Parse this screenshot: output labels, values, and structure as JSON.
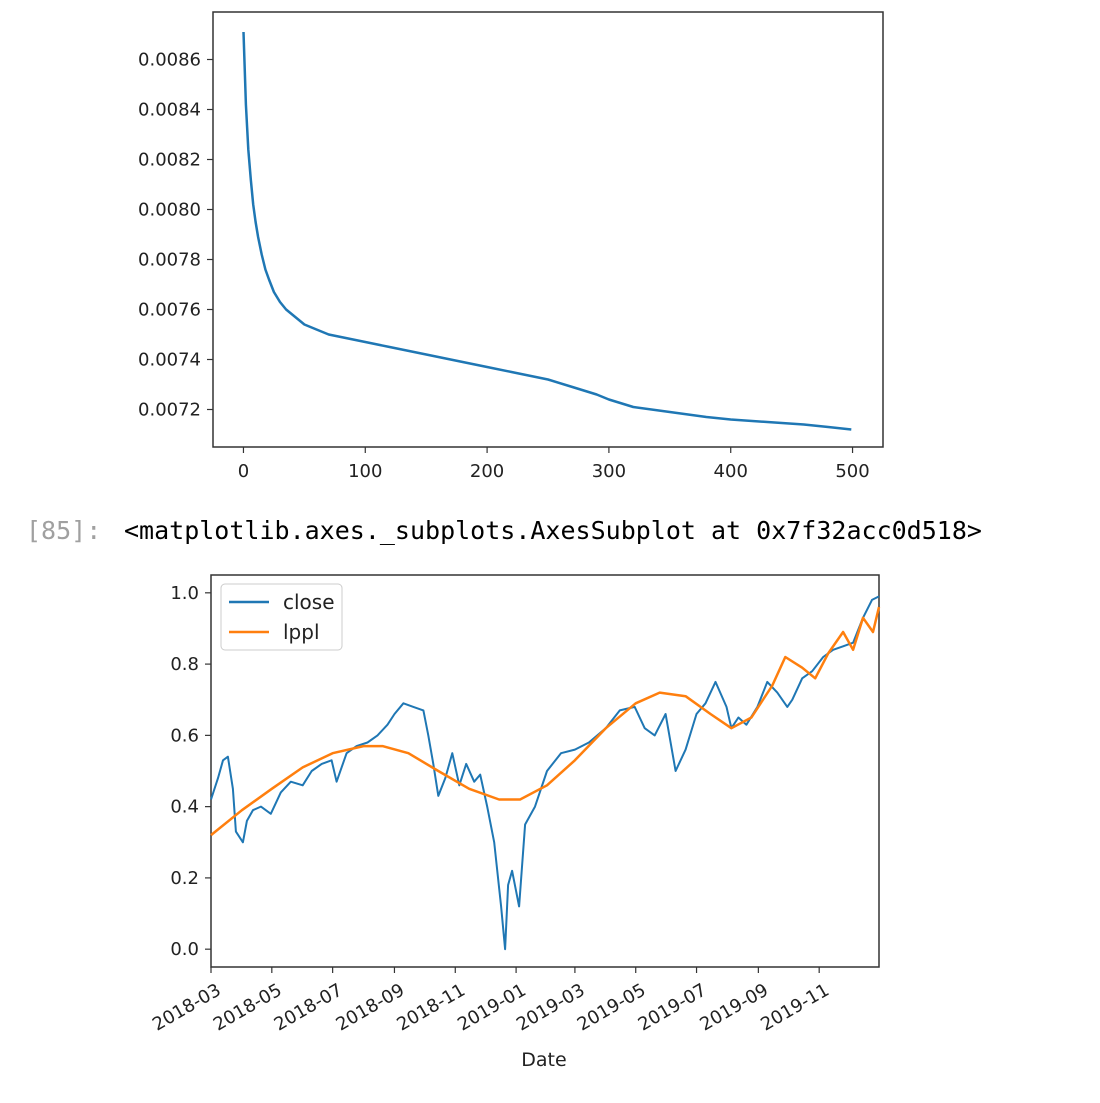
{
  "output_cell": {
    "prompt": "[85]:",
    "text": "<matplotlib.axes._subplots.AxesSubplot at 0x7f32acc0d518>"
  },
  "colors": {
    "close": "#1f77b4",
    "lppl": "#ff7f0e",
    "frame": "#333333"
  },
  "chart_data": [
    {
      "type": "line",
      "title": "",
      "xlabel": "",
      "ylabel": "",
      "xlim": [
        -25,
        525
      ],
      "ylim": [
        0.00705,
        0.00879
      ],
      "xticks": [
        0,
        100,
        200,
        300,
        400,
        500
      ],
      "yticks": [
        0.0072,
        0.0074,
        0.0076,
        0.0078,
        0.008,
        0.0082,
        0.0084,
        0.0086
      ],
      "ytick_labels": [
        "0.0072",
        "0.0074",
        "0.0076",
        "0.0078",
        "0.0080",
        "0.0082",
        "0.0084",
        "0.0086"
      ],
      "grid": false,
      "series": [
        {
          "x": [
            0,
            2,
            4,
            6,
            8,
            10,
            12,
            15,
            18,
            21,
            25,
            30,
            35,
            40,
            45,
            50,
            60,
            70,
            80,
            100,
            120,
            150,
            180,
            200,
            220,
            250,
            270,
            290,
            300,
            320,
            350,
            380,
            400,
            430,
            460,
            480,
            499
          ],
          "y": [
            0.00871,
            0.00842,
            0.00824,
            0.00812,
            0.00802,
            0.00795,
            0.00789,
            0.00782,
            0.00776,
            0.00772,
            0.00767,
            0.00763,
            0.0076,
            0.00758,
            0.00756,
            0.00754,
            0.00752,
            0.0075,
            0.00749,
            0.00747,
            0.00745,
            0.00742,
            0.00739,
            0.00737,
            0.00735,
            0.00732,
            0.00729,
            0.00726,
            0.00724,
            0.00721,
            0.00719,
            0.00717,
            0.00716,
            0.00715,
            0.00714,
            0.00713,
            0.00712
          ]
        }
      ]
    },
    {
      "type": "line",
      "title": "",
      "xlabel": "Date",
      "ylabel": "",
      "xlim": [
        "2018-03-01",
        "2019-12-31"
      ],
      "ylim": [
        -0.05,
        1.05
      ],
      "xtick_labels": [
        "2018-03",
        "2018-05",
        "2018-07",
        "2018-09",
        "2018-11",
        "2019-01",
        "2019-03",
        "2019-05",
        "2019-07",
        "2019-09",
        "2019-11"
      ],
      "yticks": [
        0.0,
        0.2,
        0.4,
        0.6,
        0.8,
        1.0
      ],
      "ytick_labels": [
        "0.0",
        "0.2",
        "0.4",
        "0.6",
        "0.8",
        "1.0"
      ],
      "legend": {
        "position": "top-left",
        "entries": [
          "close",
          "lppl"
        ]
      },
      "grid": false,
      "series": [
        {
          "name": "close",
          "x": [
            "2018-03-01",
            "2018-03-08",
            "2018-03-13",
            "2018-03-18",
            "2018-03-23",
            "2018-03-26",
            "2018-04-02",
            "2018-04-06",
            "2018-04-12",
            "2018-04-20",
            "2018-04-30",
            "2018-05-10",
            "2018-05-20",
            "2018-06-01",
            "2018-06-10",
            "2018-06-20",
            "2018-06-30",
            "2018-07-05",
            "2018-07-15",
            "2018-07-25",
            "2018-08-05",
            "2018-08-15",
            "2018-08-25",
            "2018-09-01",
            "2018-09-10",
            "2018-09-20",
            "2018-09-30",
            "2018-10-05",
            "2018-10-10",
            "2018-10-15",
            "2018-10-22",
            "2018-10-29",
            "2018-11-05",
            "2018-11-12",
            "2018-11-20",
            "2018-11-26",
            "2018-12-03",
            "2018-12-10",
            "2018-12-17",
            "2018-12-21",
            "2018-12-24",
            "2018-12-28",
            "2019-01-04",
            "2019-01-10",
            "2019-01-20",
            "2019-02-01",
            "2019-02-15",
            "2019-03-01",
            "2019-03-15",
            "2019-04-01",
            "2019-04-15",
            "2019-04-30",
            "2019-05-10",
            "2019-05-20",
            "2019-05-31",
            "2019-06-10",
            "2019-06-20",
            "2019-07-01",
            "2019-07-10",
            "2019-07-20",
            "2019-07-31",
            "2019-08-05",
            "2019-08-12",
            "2019-08-20",
            "2019-08-31",
            "2019-09-10",
            "2019-09-20",
            "2019-09-30",
            "2019-10-05",
            "2019-10-15",
            "2019-10-25",
            "2019-11-05",
            "2019-11-15",
            "2019-11-25",
            "2019-12-05",
            "2019-12-15",
            "2019-12-24",
            "2019-12-31"
          ],
          "y": [
            0.42,
            0.48,
            0.53,
            0.54,
            0.45,
            0.33,
            0.3,
            0.36,
            0.39,
            0.4,
            0.38,
            0.44,
            0.47,
            0.46,
            0.5,
            0.52,
            0.53,
            0.47,
            0.55,
            0.57,
            0.58,
            0.6,
            0.63,
            0.66,
            0.69,
            0.68,
            0.67,
            0.6,
            0.52,
            0.43,
            0.48,
            0.55,
            0.46,
            0.52,
            0.47,
            0.49,
            0.4,
            0.3,
            0.12,
            0.0,
            0.18,
            0.22,
            0.12,
            0.35,
            0.4,
            0.5,
            0.55,
            0.56,
            0.58,
            0.62,
            0.67,
            0.68,
            0.62,
            0.6,
            0.66,
            0.5,
            0.56,
            0.66,
            0.69,
            0.75,
            0.68,
            0.62,
            0.65,
            0.63,
            0.68,
            0.75,
            0.72,
            0.68,
            0.7,
            0.76,
            0.78,
            0.82,
            0.84,
            0.85,
            0.86,
            0.93,
            0.98,
            0.99
          ]
        },
        {
          "name": "lppl",
          "x": [
            "2018-03-01",
            "2018-04-01",
            "2018-05-01",
            "2018-06-01",
            "2018-07-01",
            "2018-08-01",
            "2018-08-20",
            "2018-09-15",
            "2018-10-15",
            "2018-11-15",
            "2018-12-15",
            "2019-01-05",
            "2019-02-01",
            "2019-03-01",
            "2019-04-01",
            "2019-05-01",
            "2019-05-25",
            "2019-06-20",
            "2019-07-15",
            "2019-08-05",
            "2019-08-25",
            "2019-09-15",
            "2019-09-28",
            "2019-10-15",
            "2019-10-28",
            "2019-11-10",
            "2019-11-25",
            "2019-12-05",
            "2019-12-15",
            "2019-12-25",
            "2019-12-31"
          ],
          "y": [
            0.32,
            0.39,
            0.45,
            0.51,
            0.55,
            0.57,
            0.57,
            0.55,
            0.5,
            0.45,
            0.42,
            0.42,
            0.46,
            0.53,
            0.62,
            0.69,
            0.72,
            0.71,
            0.66,
            0.62,
            0.65,
            0.74,
            0.82,
            0.79,
            0.76,
            0.83,
            0.89,
            0.84,
            0.93,
            0.89,
            0.96
          ]
        }
      ]
    }
  ]
}
